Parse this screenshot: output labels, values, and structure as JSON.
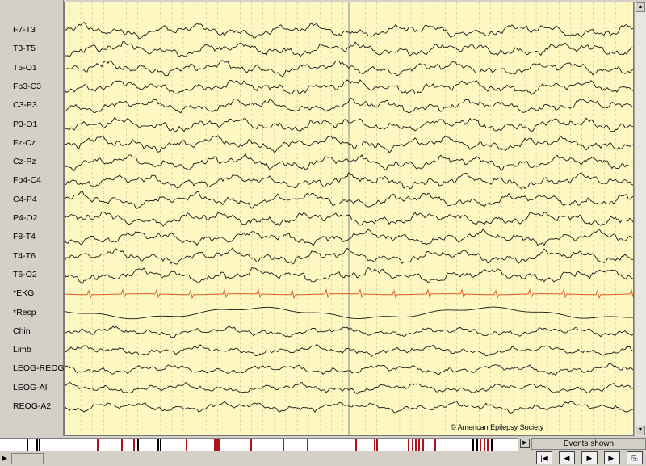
{
  "channels": [
    {
      "label": "F7-T3"
    },
    {
      "label": "T3-T5"
    },
    {
      "label": "T5-O1"
    },
    {
      "label": "Fp3-C3"
    },
    {
      "label": "C3-P3"
    },
    {
      "label": "P3-O1"
    },
    {
      "label": "Fz-Cz"
    },
    {
      "label": "Cz-Pz"
    },
    {
      "label": "Fp4-C4"
    },
    {
      "label": "C4-P4"
    },
    {
      "label": "P4-O2"
    },
    {
      "label": "F8-T4"
    },
    {
      "label": "T4-T6"
    },
    {
      "label": "T6-O2"
    },
    {
      "label": "*EKG",
      "color": "#e25b1f"
    },
    {
      "label": "*Resp"
    },
    {
      "label": "Chin"
    },
    {
      "label": "Limb"
    },
    {
      "label": "LEOG-REOG"
    },
    {
      "label": "LEOG-AI"
    },
    {
      "label": "REOG-A2"
    }
  ],
  "copyright": "© American Epilepsy Society",
  "events_panel": {
    "title": "Events shown"
  },
  "colors": {
    "trace_background": "#fdf7c2",
    "trace_line": "#1a1a1a",
    "ekg_line": "#e25b1f",
    "event_mark_red": "#b0121b",
    "event_mark_black": "#000000"
  },
  "icons": {
    "nav_first": "first-page-icon",
    "nav_prev": "previous-page-icon",
    "nav_next": "next-page-icon",
    "nav_last": "last-page-icon",
    "nav_export": "export-page-icon"
  }
}
